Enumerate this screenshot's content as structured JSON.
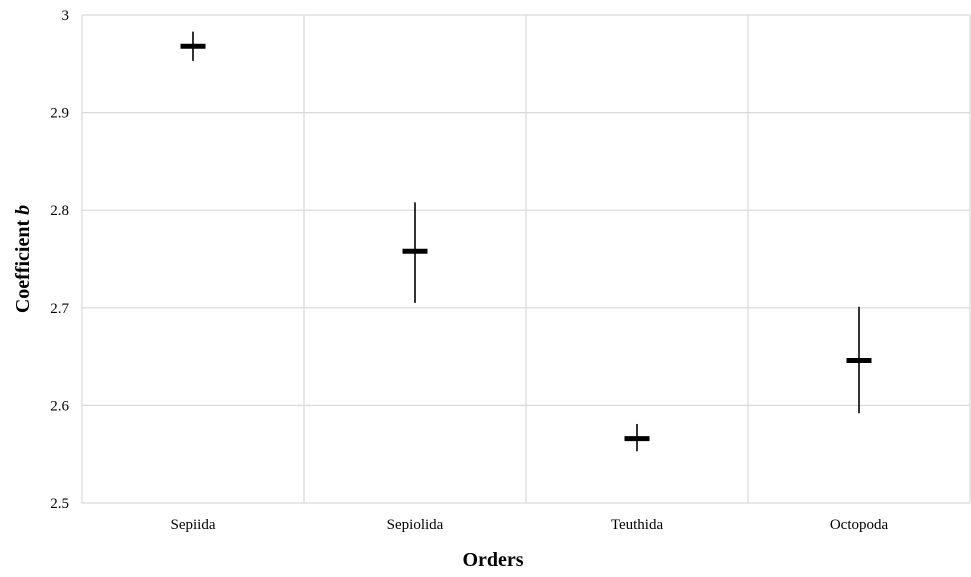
{
  "chart_data": {
    "type": "error-bar",
    "categories": [
      "Sepiida",
      "Sepiolida",
      "Teuthida",
      "Octopoda"
    ],
    "series": [
      {
        "values": [
          2.968,
          2.758,
          2.566,
          2.646
        ],
        "lower": [
          2.953,
          2.705,
          2.553,
          2.592
        ],
        "upper": [
          2.983,
          2.808,
          2.581,
          2.701
        ]
      }
    ],
    "xlabel": "Orders",
    "ylabel_main": "Coefficient ",
    "ylabel_italic": "b",
    "ylim": [
      2.5,
      3.0
    ],
    "yticks": [
      "2.5",
      "2.6",
      "2.7",
      "2.8",
      "2.9",
      "3"
    ],
    "grid": true,
    "colors": {
      "grid": "#d9d9d9",
      "mark": "#000000"
    }
  }
}
